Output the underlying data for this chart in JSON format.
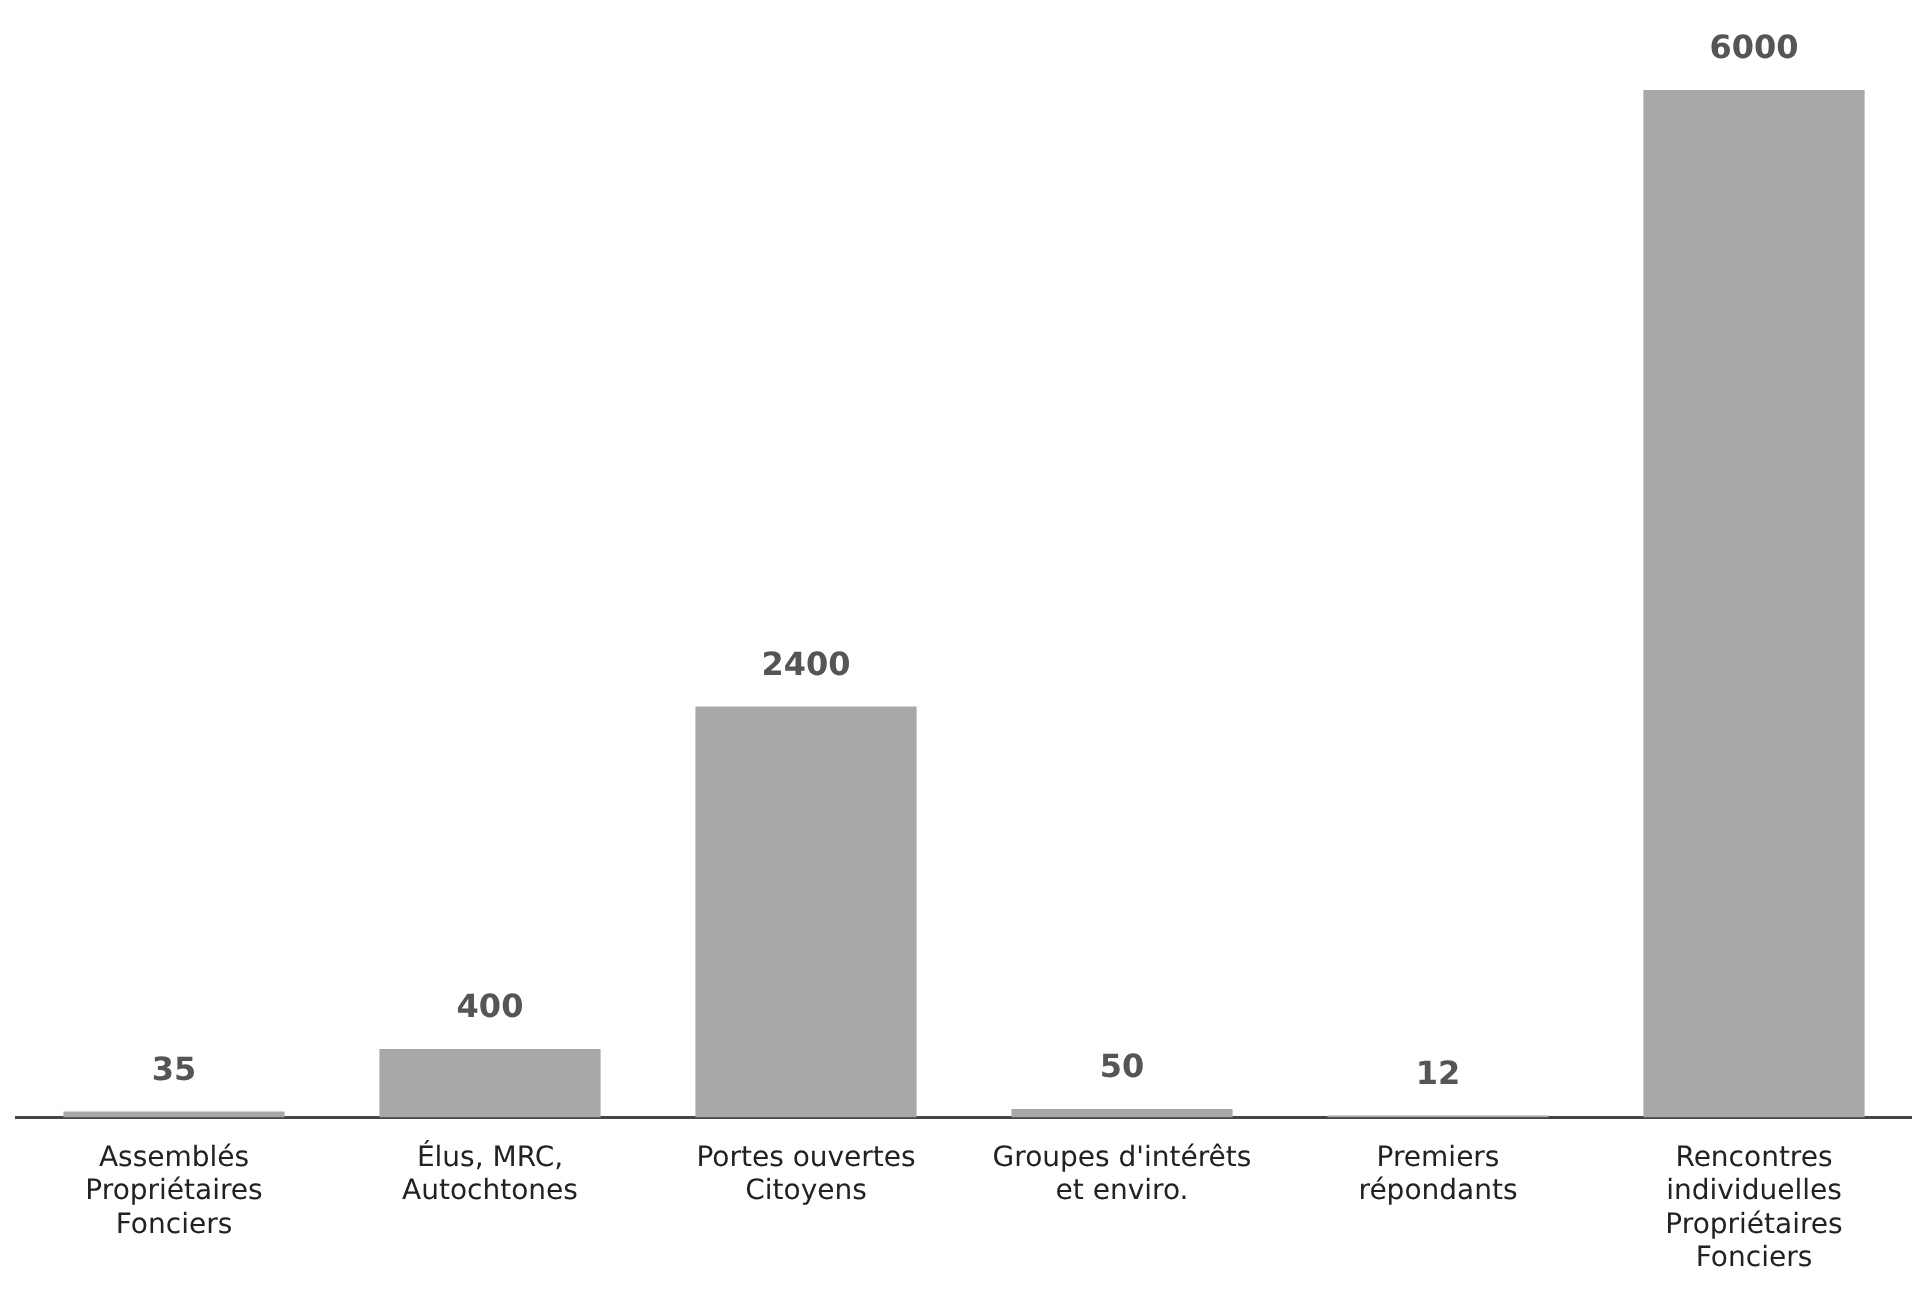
{
  "chart_data": {
    "type": "bar",
    "categories": [
      "Assemblés\nPropriétaires\nFonciers",
      "Élus, MRC,\nAutochtones",
      "Portes ouvertes\nCitoyens",
      "Groupes d'intérêts\net enviro.",
      "Premiers\nrépondants",
      "Rencontres\nindividuelles\nPropriétaires\nFonciers"
    ],
    "values": [
      35,
      400,
      2400,
      50,
      12,
      6000
    ],
    "color": "#a7a8aa",
    "data_labels": true,
    "grid": false,
    "legend": false,
    "tick_labels": "x"
  }
}
